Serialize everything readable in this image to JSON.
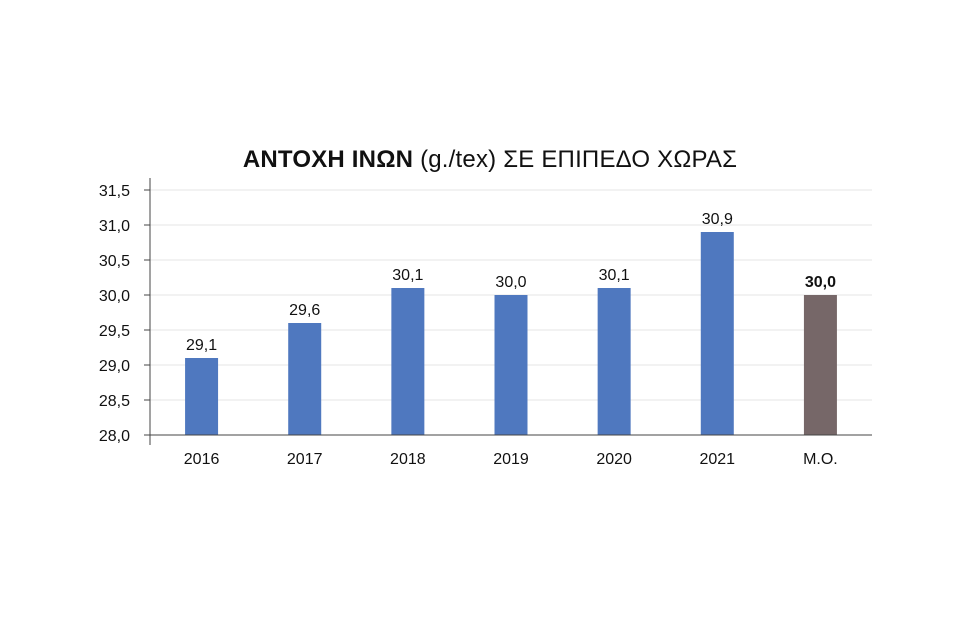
{
  "chart_data": {
    "type": "bar",
    "title": "ΑΝΤΟΧΗ ΙΝΩΝ",
    "title_unit": "(g./tex) ΣΕ ΕΠΙΠΕΔΟ ΧΩΡΑΣ",
    "categories": [
      "2016",
      "2017",
      "2018",
      "2019",
      "2020",
      "2021",
      "Μ.Ο."
    ],
    "values": [
      29.1,
      29.6,
      30.1,
      30.0,
      30.1,
      30.9,
      30.0
    ],
    "data_labels": [
      "29,1",
      "29,6",
      "30,1",
      "30,0",
      "30,1",
      "30,9",
      "30,0"
    ],
    "highlight_index": 6,
    "ylim": [
      28.0,
      31.5
    ],
    "yticks": [
      28.0,
      28.5,
      29.0,
      29.5,
      30.0,
      30.5,
      31.0,
      31.5
    ],
    "ytick_labels": [
      "28,0",
      "28,5",
      "29,0",
      "29,5",
      "30,0",
      "30,5",
      "31,0",
      "31,5"
    ],
    "grid": true,
    "legend": "none",
    "xlabel": "",
    "ylabel": "",
    "colors": {
      "bar": "#4f78bf",
      "highlight": "#766768",
      "grid": "#e6e6e6",
      "axis": "#444444"
    }
  }
}
